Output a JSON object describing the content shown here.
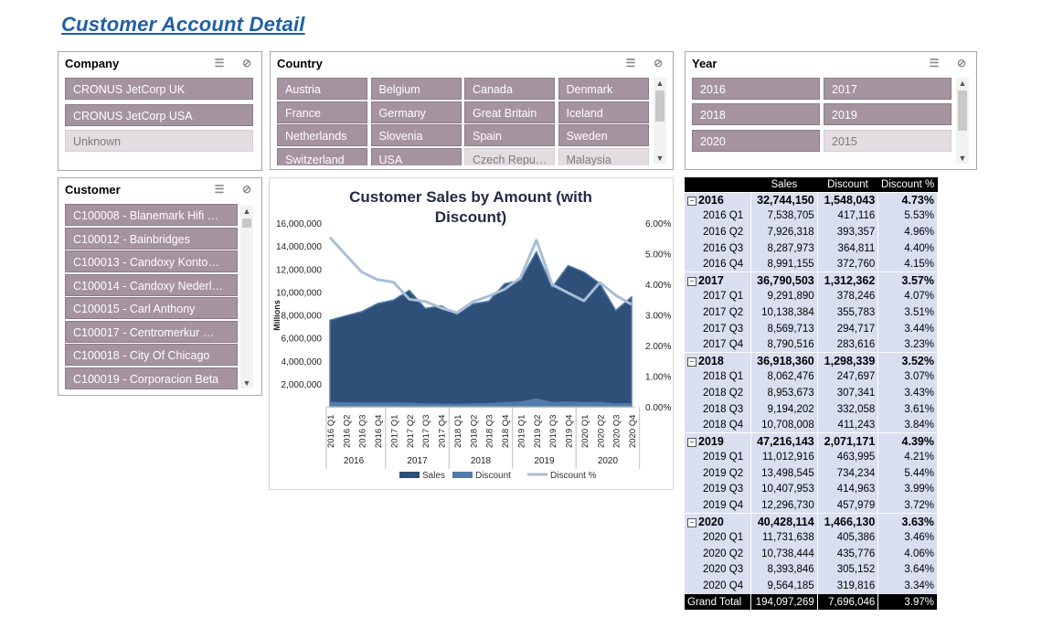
{
  "page_title": "Customer Account Detail",
  "company_slicer": {
    "title": "Company",
    "items": [
      {
        "label": "CRONUS JetCorp UK",
        "selected": true
      },
      {
        "label": "CRONUS JetCorp USA",
        "selected": true
      },
      {
        "label": "Unknown",
        "selected": false
      }
    ]
  },
  "country_slicer": {
    "title": "Country",
    "items": [
      {
        "label": "Austria",
        "selected": true
      },
      {
        "label": "Belgium",
        "selected": true
      },
      {
        "label": "Canada",
        "selected": true
      },
      {
        "label": "Denmark",
        "selected": true
      },
      {
        "label": "France",
        "selected": true
      },
      {
        "label": "Germany",
        "selected": true
      },
      {
        "label": "Great Britain",
        "selected": true
      },
      {
        "label": "Iceland",
        "selected": true
      },
      {
        "label": "Netherlands",
        "selected": true
      },
      {
        "label": "Slovenia",
        "selected": true
      },
      {
        "label": "Spain",
        "selected": true
      },
      {
        "label": "Sweden",
        "selected": true
      },
      {
        "label": "Switzerland",
        "selected": true
      },
      {
        "label": "USA",
        "selected": true
      },
      {
        "label": "Czech Repu…",
        "selected": false
      },
      {
        "label": "Malaysia",
        "selected": false
      }
    ]
  },
  "year_slicer": {
    "title": "Year",
    "items": [
      {
        "label": "2016",
        "selected": true
      },
      {
        "label": "2017",
        "selected": true
      },
      {
        "label": "2018",
        "selected": true
      },
      {
        "label": "2019",
        "selected": true
      },
      {
        "label": "2020",
        "selected": true
      },
      {
        "label": "2015",
        "selected": false
      }
    ]
  },
  "customer_slicer": {
    "title": "Customer",
    "items": [
      {
        "label": "C100008 - Blanemark Hifi …",
        "selected": true
      },
      {
        "label": "C100012 - Bainbridges",
        "selected": true
      },
      {
        "label": "C100013 - Candoxy Konto…",
        "selected": true
      },
      {
        "label": "C100014 - Candoxy Nederl…",
        "selected": true
      },
      {
        "label": "C100015 - Carl Anthony",
        "selected": true
      },
      {
        "label": "C100017 - Centromerkur …",
        "selected": true
      },
      {
        "label": "C100018 - City Of Chicago",
        "selected": true
      },
      {
        "label": "C100019 - Corporacion Beta",
        "selected": true
      }
    ]
  },
  "icons": {
    "multiselect": "multi-select-icon",
    "clear_filter": "clear-filter-icon"
  },
  "colors": {
    "title": "#1f5fa6",
    "slicer_selected": "#a5949f",
    "slicer_unselected": "#e3dde1",
    "sales": "#2e4f77",
    "discount": "#4f7bad",
    "discount_pct": "#a9bed6",
    "pivot_row": "#d9def0"
  },
  "chart_data": {
    "type": "area",
    "title": "Customer Sales by Amount (with Discount)",
    "y_axis_label": "Millions",
    "y_left_ticks": [
      "16,000,000",
      "14,000,000",
      "12,000,000",
      "10,000,000",
      "8,000,000",
      "6,000,000",
      "4,000,000",
      "2,000,000"
    ],
    "y_right_ticks": [
      "6.00%",
      "5.00%",
      "4.00%",
      "3.00%",
      "2.00%",
      "1.00%",
      "0.00%"
    ],
    "ylim_left": [
      0,
      16000000
    ],
    "ylim_right": [
      0,
      6
    ],
    "categories": [
      "2016 Q1",
      "2016 Q2",
      "2016 Q3",
      "2016 Q4",
      "2017 Q1",
      "2017 Q2",
      "2017 Q3",
      "2017 Q4",
      "2018 Q1",
      "2018 Q2",
      "2018 Q3",
      "2018 Q4",
      "2019 Q1",
      "2019 Q2",
      "2019 Q3",
      "2019 Q4",
      "2020 Q1",
      "2020 Q2",
      "2020 Q3",
      "2020 Q4"
    ],
    "year_groups": [
      "2016",
      "2017",
      "2018",
      "2019",
      "2020"
    ],
    "series": [
      {
        "name": "Sales",
        "values": [
          7538705,
          7926318,
          8287973,
          8991155,
          9291890,
          10138384,
          8569713,
          8790516,
          8062476,
          8953673,
          9194202,
          10708008,
          11012916,
          13498545,
          10407953,
          12296730,
          11731638,
          10738444,
          8393846,
          9564185
        ]
      },
      {
        "name": "Discount",
        "values": [
          417116,
          393357,
          364811,
          372760,
          378246,
          355783,
          294717,
          283616,
          247697,
          307341,
          332058,
          411243,
          463995,
          734234,
          414963,
          457979,
          405386,
          435776,
          305152,
          319816
        ]
      },
      {
        "name": "Discount %",
        "values": [
          5.53,
          4.96,
          4.4,
          4.15,
          4.07,
          3.51,
          3.44,
          3.23,
          3.07,
          3.43,
          3.61,
          3.84,
          4.21,
          5.44,
          3.99,
          3.72,
          3.46,
          4.06,
          3.64,
          3.34
        ]
      }
    ],
    "legend_position": "bottom"
  },
  "pivot": {
    "headers": [
      "",
      "Sales",
      "Discount",
      "Discount %"
    ],
    "years": [
      {
        "label": "2016",
        "sales": "32,744,150",
        "discount": "1,548,043",
        "pct": "4.73%",
        "quarters": [
          {
            "label": "2016 Q1",
            "sales": "7,538,705",
            "discount": "417,116",
            "pct": "5.53%"
          },
          {
            "label": "2016 Q2",
            "sales": "7,926,318",
            "discount": "393,357",
            "pct": "4.96%"
          },
          {
            "label": "2016 Q3",
            "sales": "8,287,973",
            "discount": "364,811",
            "pct": "4.40%"
          },
          {
            "label": "2016 Q4",
            "sales": "8,991,155",
            "discount": "372,760",
            "pct": "4.15%"
          }
        ]
      },
      {
        "label": "2017",
        "sales": "36,790,503",
        "discount": "1,312,362",
        "pct": "3.57%",
        "quarters": [
          {
            "label": "2017 Q1",
            "sales": "9,291,890",
            "discount": "378,246",
            "pct": "4.07%"
          },
          {
            "label": "2017 Q2",
            "sales": "10,138,384",
            "discount": "355,783",
            "pct": "3.51%"
          },
          {
            "label": "2017 Q3",
            "sales": "8,569,713",
            "discount": "294,717",
            "pct": "3.44%"
          },
          {
            "label": "2017 Q4",
            "sales": "8,790,516",
            "discount": "283,616",
            "pct": "3.23%"
          }
        ]
      },
      {
        "label": "2018",
        "sales": "36,918,360",
        "discount": "1,298,339",
        "pct": "3.52%",
        "quarters": [
          {
            "label": "2018 Q1",
            "sales": "8,062,476",
            "discount": "247,697",
            "pct": "3.07%"
          },
          {
            "label": "2018 Q2",
            "sales": "8,953,673",
            "discount": "307,341",
            "pct": "3.43%"
          },
          {
            "label": "2018 Q3",
            "sales": "9,194,202",
            "discount": "332,058",
            "pct": "3.61%"
          },
          {
            "label": "2018 Q4",
            "sales": "10,708,008",
            "discount": "411,243",
            "pct": "3.84%"
          }
        ]
      },
      {
        "label": "2019",
        "sales": "47,216,143",
        "discount": "2,071,171",
        "pct": "4.39%",
        "quarters": [
          {
            "label": "2019 Q1",
            "sales": "11,012,916",
            "discount": "463,995",
            "pct": "4.21%"
          },
          {
            "label": "2019 Q2",
            "sales": "13,498,545",
            "discount": "734,234",
            "pct": "5.44%"
          },
          {
            "label": "2019 Q3",
            "sales": "10,407,953",
            "discount": "414,963",
            "pct": "3.99%"
          },
          {
            "label": "2019 Q4",
            "sales": "12,296,730",
            "discount": "457,979",
            "pct": "3.72%"
          }
        ]
      },
      {
        "label": "2020",
        "sales": "40,428,114",
        "discount": "1,466,130",
        "pct": "3.63%",
        "quarters": [
          {
            "label": "2020 Q1",
            "sales": "11,731,638",
            "discount": "405,386",
            "pct": "3.46%"
          },
          {
            "label": "2020 Q2",
            "sales": "10,738,444",
            "discount": "435,776",
            "pct": "4.06%"
          },
          {
            "label": "2020 Q3",
            "sales": "8,393,846",
            "discount": "305,152",
            "pct": "3.64%"
          },
          {
            "label": "2020 Q4",
            "sales": "9,564,185",
            "discount": "319,816",
            "pct": "3.34%"
          }
        ]
      }
    ],
    "grand_total": {
      "label": "Grand Total",
      "sales": "194,097,269",
      "discount": "7,696,046",
      "pct": "3.97%"
    }
  }
}
